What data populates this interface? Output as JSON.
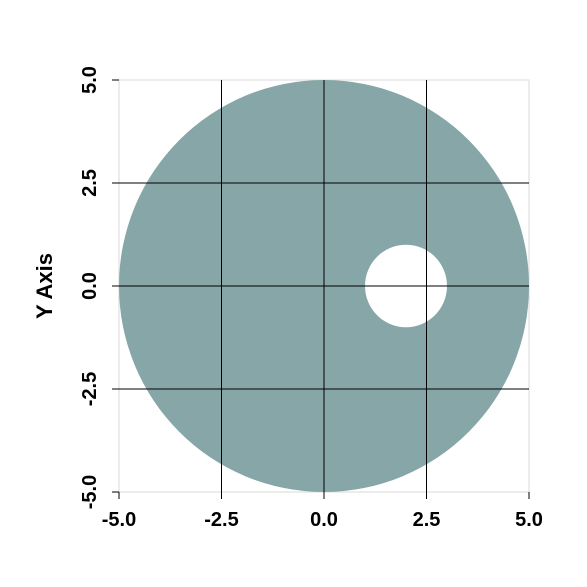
{
  "chart_data": {
    "type": "area",
    "title": "",
    "xlabel": "",
    "ylabel": "Y Axis",
    "xlim": [
      -5.0,
      5.0
    ],
    "ylim": [
      -5.0,
      5.0
    ],
    "grid": true,
    "x_ticks": [
      "-5.0",
      "-2.5",
      "0.0",
      "2.5",
      "5.0"
    ],
    "y_ticks": [
      "-5.0",
      "-2.5",
      "0.0",
      "2.5",
      "5.0"
    ],
    "shapes": [
      {
        "kind": "annulus",
        "outer": {
          "cx": 0.0,
          "cy": 0.0,
          "r": 5.0
        },
        "hole": {
          "cx": 2.0,
          "cy": 0.0,
          "r": 1.0
        },
        "fill": "#87a6a8"
      }
    ]
  },
  "colors": {
    "background": "#ffffff",
    "fill": "#87a6a8",
    "grid": "#000000",
    "frame": "#d9d9d9"
  }
}
